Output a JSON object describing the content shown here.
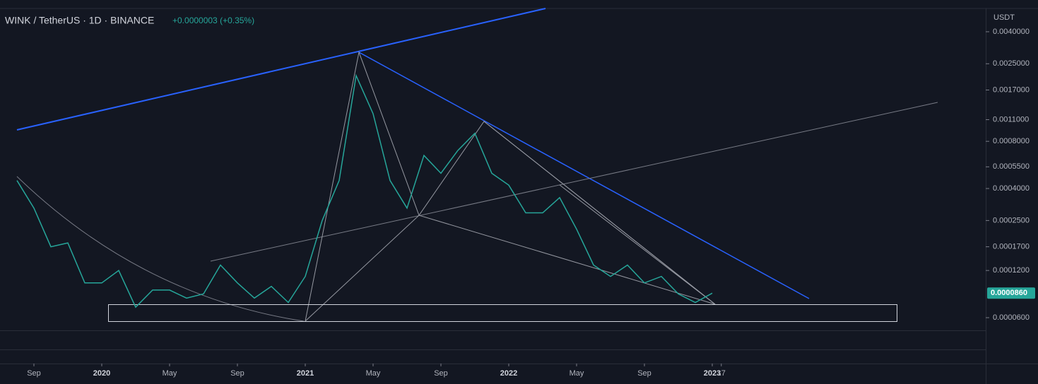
{
  "chart_data": {
    "type": "line",
    "title": "WINK / TetherUS · 1D · BINANCE",
    "subtitle": "+0.0000003 (+0.35%)",
    "y_axis_label": "USDT",
    "log_scale": true,
    "x": [
      "2019-08",
      "2019-09",
      "2019-10",
      "2019-11",
      "2019-12",
      "2020-01",
      "2020-02",
      "2020-03",
      "2020-04",
      "2020-05",
      "2020-06",
      "2020-07",
      "2020-08",
      "2020-09",
      "2020-10",
      "2020-11",
      "2020-12",
      "2021-01",
      "2021-02",
      "2021-03",
      "2021-04",
      "2021-05",
      "2021-06",
      "2021-07",
      "2021-08",
      "2021-09",
      "2021-10",
      "2021-11",
      "2021-12",
      "2022-01",
      "2022-02",
      "2022-03",
      "2022-04",
      "2022-05",
      "2022-06",
      "2022-07",
      "2022-08",
      "2022-09",
      "2022-10",
      "2022-11",
      "2022-12",
      "2023-01"
    ],
    "series": [
      {
        "name": "WINKUSDT",
        "color": "#26a69a",
        "values": [
          0.00045,
          0.0003,
          0.00017,
          0.00018,
          0.0001,
          0.0001,
          0.00012,
          7e-05,
          9e-05,
          9e-05,
          8e-05,
          8.5e-05,
          0.00013,
          0.0001,
          8e-05,
          9.5e-05,
          7.5e-05,
          0.00011,
          0.00025,
          0.00045,
          0.0021,
          0.0012,
          0.00045,
          0.0003,
          0.00065,
          0.0005,
          0.0007,
          0.0009,
          0.0005,
          0.00042,
          0.00028,
          0.00028,
          0.00035,
          0.00022,
          0.00013,
          0.00011,
          0.00013,
          0.0001,
          0.00011,
          8.5e-05,
          7.5e-05,
          8.6e-05
        ]
      }
    ],
    "last_price": {
      "value": 8.6e-05,
      "label": "0.0000860"
    },
    "xlim": [
      "2019-07",
      "2024-05"
    ],
    "xticks": [
      {
        "value": "2019-09",
        "label": "Sep"
      },
      {
        "value": "2020-01",
        "label": "2020"
      },
      {
        "value": "2020-05",
        "label": "May"
      },
      {
        "value": "2020-09",
        "label": "Sep"
      },
      {
        "value": "2021-01",
        "label": "2021"
      },
      {
        "value": "2021-05",
        "label": "May"
      },
      {
        "value": "2021-09",
        "label": "Sep"
      },
      {
        "value": "2022-01",
        "label": "2022"
      },
      {
        "value": "2022-05",
        "label": "May"
      },
      {
        "value": "2022-09",
        "label": "Sep"
      },
      {
        "value": "2023-01",
        "label": "2023"
      },
      {
        "value": "2023-01-17",
        "label": "17"
      }
    ],
    "ylim": [
      4.98e-05,
      0.00563
    ],
    "yticks": [
      {
        "value": 0.004,
        "label": "0.0040000"
      },
      {
        "value": 0.0025,
        "label": "0.0025000"
      },
      {
        "value": 0.0017,
        "label": "0.0017000"
      },
      {
        "value": 0.0011,
        "label": "0.0011000"
      },
      {
        "value": 0.0008,
        "label": "0.0008000"
      },
      {
        "value": 0.00055,
        "label": "0.0005500"
      },
      {
        "value": 0.0004,
        "label": "0.0004000"
      },
      {
        "value": 0.00025,
        "label": "0.0002500"
      },
      {
        "value": 0.00017,
        "label": "0.0001700"
      },
      {
        "value": 0.00012,
        "label": "0.0001200"
      },
      {
        "value": 6e-05,
        "label": "0.0000600"
      }
    ]
  }
}
